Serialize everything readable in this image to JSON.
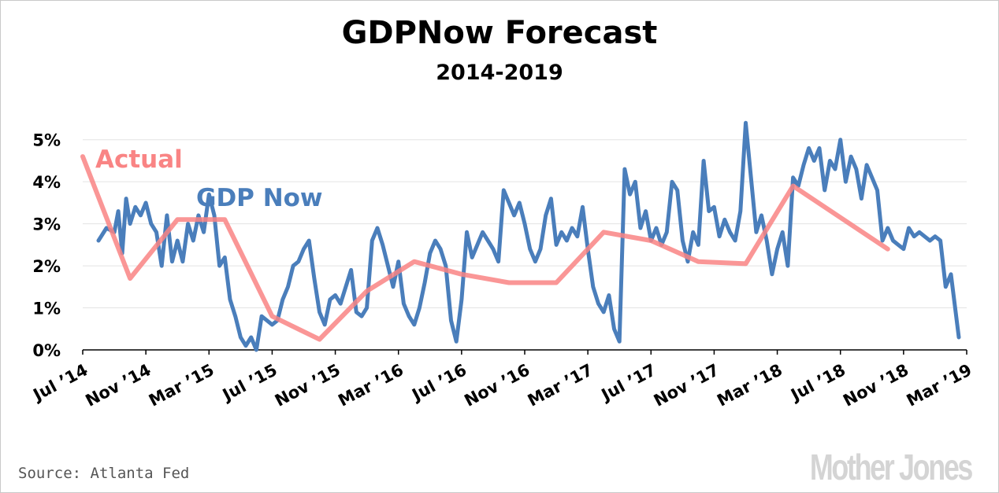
{
  "title": "GDPNow Forecast",
  "subtitle": "2014-2019",
  "source": "Source: Atlanta Fed",
  "logo": "Mother Jones",
  "colors": {
    "actual": "#f98484",
    "gdpnow": "#4a7ebb",
    "grid": "#e3e3e3"
  },
  "chart_data": {
    "type": "line",
    "title": "GDPNow Forecast",
    "subtitle": "2014-2019",
    "xlabel": "",
    "ylabel": "",
    "ylim": [
      0,
      5.5
    ],
    "grid": true,
    "y_ticks": [
      "0%",
      "1%",
      "2%",
      "3%",
      "4%",
      "5%"
    ],
    "x_tick_labels": [
      "Jul ’14",
      "Nov ’14",
      "Mar ’15",
      "Jul ’15",
      "Nov ’15",
      "Mar ’16",
      "Jul ’16",
      "Nov ’16",
      "Mar ’17",
      "Jul ’17",
      "Nov ’17",
      "Mar ’18",
      "Jul ’18",
      "Nov ’18",
      "Mar ’19"
    ],
    "x_range_months": [
      "2014-07",
      "2019-03"
    ],
    "series": [
      {
        "name": "Actual",
        "color": "#f98484",
        "points": [
          [
            "2014-07",
            4.6
          ],
          [
            "2014-10",
            1.7
          ],
          [
            "2015-01",
            3.1
          ],
          [
            "2015-04",
            3.1
          ],
          [
            "2015-07",
            0.8
          ],
          [
            "2015-10",
            0.25
          ],
          [
            "2016-01",
            1.4
          ],
          [
            "2016-04",
            2.1
          ],
          [
            "2016-07",
            1.8
          ],
          [
            "2016-10",
            1.6
          ],
          [
            "2017-01",
            1.6
          ],
          [
            "2017-04",
            2.8
          ],
          [
            "2017-07",
            2.6
          ],
          [
            "2017-10",
            2.1
          ],
          [
            "2018-01",
            2.05
          ],
          [
            "2018-04",
            3.9
          ],
          [
            "2018-07",
            3.15
          ],
          [
            "2018-10",
            2.4
          ]
        ]
      },
      {
        "name": "GDP Now",
        "color": "#4a7ebb",
        "points": [
          [
            "2014-08",
            2.6
          ],
          [
            "2014-08",
            2.9
          ],
          [
            "2014-09",
            2.8
          ],
          [
            "2014-09",
            3.3
          ],
          [
            "2014-09",
            2.3
          ],
          [
            "2014-09",
            3.6
          ],
          [
            "2014-10",
            3.0
          ],
          [
            "2014-10",
            3.4
          ],
          [
            "2014-10",
            3.2
          ],
          [
            "2014-11",
            3.5
          ],
          [
            "2014-11",
            3.0
          ],
          [
            "2014-11",
            2.8
          ],
          [
            "2014-12",
            2.0
          ],
          [
            "2014-12",
            3.2
          ],
          [
            "2014-12",
            2.1
          ],
          [
            "2015-01",
            2.6
          ],
          [
            "2015-01",
            2.1
          ],
          [
            "2015-01",
            3.0
          ],
          [
            "2015-02",
            2.6
          ],
          [
            "2015-02",
            3.2
          ],
          [
            "2015-02",
            2.8
          ],
          [
            "2015-03",
            3.7
          ],
          [
            "2015-03",
            3.2
          ],
          [
            "2015-03",
            2.0
          ],
          [
            "2015-04",
            2.2
          ],
          [
            "2015-04",
            1.2
          ],
          [
            "2015-04",
            0.8
          ],
          [
            "2015-05",
            0.3
          ],
          [
            "2015-05",
            0.1
          ],
          [
            "2015-05",
            0.3
          ],
          [
            "2015-06",
            0.0
          ],
          [
            "2015-06",
            0.8
          ],
          [
            "2015-06",
            0.7
          ],
          [
            "2015-07",
            0.6
          ],
          [
            "2015-07",
            0.7
          ],
          [
            "2015-07",
            1.2
          ],
          [
            "2015-08",
            1.5
          ],
          [
            "2015-08",
            2.0
          ],
          [
            "2015-08",
            2.1
          ],
          [
            "2015-09",
            2.4
          ],
          [
            "2015-09",
            2.6
          ],
          [
            "2015-09",
            1.7
          ],
          [
            "2015-10",
            0.9
          ],
          [
            "2015-10",
            0.6
          ],
          [
            "2015-10",
            1.2
          ],
          [
            "2015-11",
            1.3
          ],
          [
            "2015-11",
            1.1
          ],
          [
            "2015-11",
            1.5
          ],
          [
            "2015-12",
            1.9
          ],
          [
            "2015-12",
            0.9
          ],
          [
            "2015-12",
            0.8
          ],
          [
            "2016-01",
            1.0
          ],
          [
            "2016-01",
            2.6
          ],
          [
            "2016-01",
            2.9
          ],
          [
            "2016-02",
            2.5
          ],
          [
            "2016-02",
            2.0
          ],
          [
            "2016-02",
            1.5
          ],
          [
            "2016-03",
            2.1
          ],
          [
            "2016-03",
            1.1
          ],
          [
            "2016-03",
            0.8
          ],
          [
            "2016-04",
            0.6
          ],
          [
            "2016-04",
            1.0
          ],
          [
            "2016-04",
            1.6
          ],
          [
            "2016-05",
            2.3
          ],
          [
            "2016-05",
            2.6
          ],
          [
            "2016-05",
            2.4
          ],
          [
            "2016-06",
            2.0
          ],
          [
            "2016-06",
            0.7
          ],
          [
            "2016-06",
            0.2
          ],
          [
            "2016-07",
            1.2
          ],
          [
            "2016-07",
            2.8
          ],
          [
            "2016-07",
            2.2
          ],
          [
            "2016-08",
            2.5
          ],
          [
            "2016-08",
            2.8
          ],
          [
            "2016-08",
            2.6
          ],
          [
            "2016-09",
            2.4
          ],
          [
            "2016-09",
            2.1
          ],
          [
            "2016-09",
            3.8
          ],
          [
            "2016-10",
            3.5
          ],
          [
            "2016-10",
            3.2
          ],
          [
            "2016-10",
            3.5
          ],
          [
            "2016-11",
            3.0
          ],
          [
            "2016-11",
            2.4
          ],
          [
            "2016-11",
            2.1
          ],
          [
            "2016-12",
            2.4
          ],
          [
            "2016-12",
            3.2
          ],
          [
            "2016-12",
            3.6
          ],
          [
            "2017-01",
            2.5
          ],
          [
            "2017-01",
            2.8
          ],
          [
            "2017-01",
            2.6
          ],
          [
            "2017-02",
            2.9
          ],
          [
            "2017-02",
            2.7
          ],
          [
            "2017-02",
            3.4
          ],
          [
            "2017-03",
            2.4
          ],
          [
            "2017-03",
            1.5
          ],
          [
            "2017-03",
            1.1
          ],
          [
            "2017-04",
            0.9
          ],
          [
            "2017-04",
            1.3
          ],
          [
            "2017-04",
            0.5
          ],
          [
            "2017-05",
            0.2
          ],
          [
            "2017-05",
            4.3
          ],
          [
            "2017-05",
            3.7
          ],
          [
            "2017-06",
            4.0
          ],
          [
            "2017-06",
            2.9
          ],
          [
            "2017-06",
            3.3
          ],
          [
            "2017-07",
            2.6
          ],
          [
            "2017-07",
            2.9
          ],
          [
            "2017-07",
            2.5
          ],
          [
            "2017-08",
            2.8
          ],
          [
            "2017-08",
            4.0
          ],
          [
            "2017-08",
            3.8
          ],
          [
            "2017-09",
            2.6
          ],
          [
            "2017-09",
            2.1
          ],
          [
            "2017-09",
            2.8
          ],
          [
            "2017-10",
            2.5
          ],
          [
            "2017-10",
            4.5
          ],
          [
            "2017-10",
            3.3
          ],
          [
            "2017-11",
            3.4
          ],
          [
            "2017-11",
            2.7
          ],
          [
            "2017-11",
            3.1
          ],
          [
            "2017-12",
            2.8
          ],
          [
            "2017-12",
            2.6
          ],
          [
            "2017-12",
            3.3
          ],
          [
            "2018-01",
            5.4
          ],
          [
            "2018-01",
            4.1
          ],
          [
            "2018-01",
            2.8
          ],
          [
            "2018-02",
            3.2
          ],
          [
            "2018-02",
            2.6
          ],
          [
            "2018-02",
            1.8
          ],
          [
            "2018-03",
            2.4
          ],
          [
            "2018-03",
            2.8
          ],
          [
            "2018-03",
            2.0
          ],
          [
            "2018-04",
            4.1
          ],
          [
            "2018-04",
            3.9
          ],
          [
            "2018-04",
            4.4
          ],
          [
            "2018-05",
            4.8
          ],
          [
            "2018-05",
            4.5
          ],
          [
            "2018-05",
            4.8
          ],
          [
            "2018-06",
            3.8
          ],
          [
            "2018-06",
            4.5
          ],
          [
            "2018-06",
            4.3
          ],
          [
            "2018-07",
            5.0
          ],
          [
            "2018-07",
            4.0
          ],
          [
            "2018-07",
            4.6
          ],
          [
            "2018-08",
            4.3
          ],
          [
            "2018-08",
            3.6
          ],
          [
            "2018-08",
            4.4
          ],
          [
            "2018-09",
            4.1
          ],
          [
            "2018-09",
            3.8
          ],
          [
            "2018-09",
            2.6
          ],
          [
            "2018-10",
            2.9
          ],
          [
            "2018-10",
            2.6
          ],
          [
            "2018-10",
            2.5
          ],
          [
            "2018-11",
            2.4
          ],
          [
            "2018-11",
            2.9
          ],
          [
            "2018-11",
            2.7
          ],
          [
            "2018-12",
            2.8
          ],
          [
            "2018-12",
            2.7
          ],
          [
            "2018-12",
            2.6
          ],
          [
            "2019-01",
            2.7
          ],
          [
            "2019-01",
            2.6
          ],
          [
            "2019-01",
            1.5
          ],
          [
            "2019-02",
            1.8
          ],
          [
            "2019-02",
            0.3
          ]
        ]
      }
    ],
    "annotations": [
      "Actual",
      "GDP Now"
    ]
  }
}
